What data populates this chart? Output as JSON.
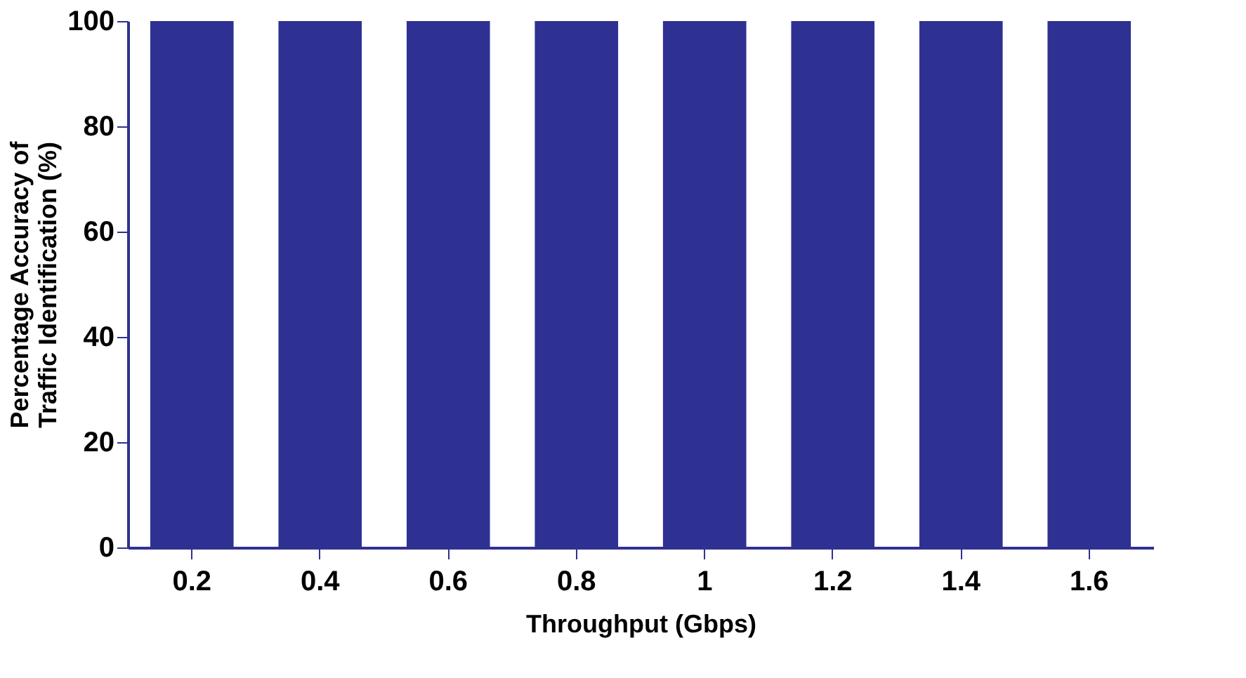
{
  "chart_data": {
    "type": "bar",
    "xlabel": "Throughput (Gbps)",
    "ylabel": "Percentage Accuracy of\nTraffic Identification (%)",
    "categories": [
      "0.2",
      "0.4",
      "0.6",
      "0.8",
      "1",
      "1.2",
      "1.4",
      "1.6"
    ],
    "values": [
      100,
      100,
      100,
      100,
      100,
      100,
      100,
      100
    ],
    "color": "#2e3192",
    "ylim": [
      0,
      100
    ],
    "yticks": [
      0,
      20,
      40,
      60,
      80,
      100
    ]
  }
}
